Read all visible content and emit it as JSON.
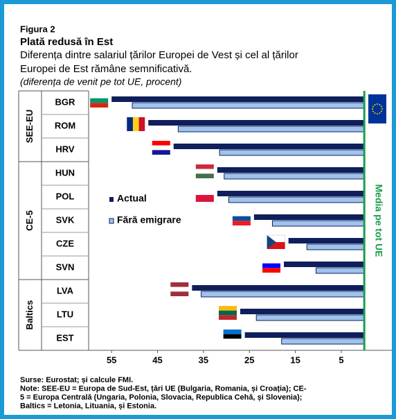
{
  "chart_data": {
    "type": "hbar",
    "figure_label": "Figura 2",
    "title": "Plată redusă în Est",
    "subtitle_lines": [
      "Diferența dintre salariul țărilor Europei de Vest și cel al țărilor",
      "Europei de Est rămâne semnificativă."
    ],
    "unit_note": "(diferența de venit pe tot UE, procent)",
    "categories": [
      "BGR",
      "ROM",
      "HRV",
      "HUN",
      "POL",
      "SVK",
      "CZE",
      "SVN",
      "LVA",
      "LTU",
      "EST"
    ],
    "groups": [
      {
        "name": "SEE-EU",
        "count": 3
      },
      {
        "name": "CE-5",
        "count": 5
      },
      {
        "name": "Baltics",
        "count": 3
      }
    ],
    "series": [
      {
        "name": "Actual",
        "color": "#0f1f5c",
        "values": [
          55,
          47,
          41.5,
          32,
          32,
          24,
          16.5,
          17.5,
          37.5,
          27,
          26
        ]
      },
      {
        "name": "Fără emigrare",
        "color": "#9fc3ec",
        "values": [
          50.5,
          40.5,
          31.5,
          30.5,
          29.5,
          20,
          12.5,
          10.5,
          35.5,
          23.5,
          18
        ]
      }
    ],
    "xlim": [
      60,
      -6
    ],
    "xticks": [
      55,
      45,
      35,
      25,
      15,
      5
    ],
    "reference_label": "Media pe tot UE",
    "reference_color": "#1a9e4a",
    "legend": "center-left",
    "notes": [
      "Surse: Eurostat; și calcule FMI.",
      "Note: SEE-EU = Europa de Sud-Est, țări UE (Bulgaria, Romania, și Croația); CE-",
      "5 = Europa Centrală (Ungaria, Polonia, Slovacia, Republica Cehă, și Slovenia);",
      "Baltics = Letonia, Lituania, și Estonia."
    ]
  }
}
